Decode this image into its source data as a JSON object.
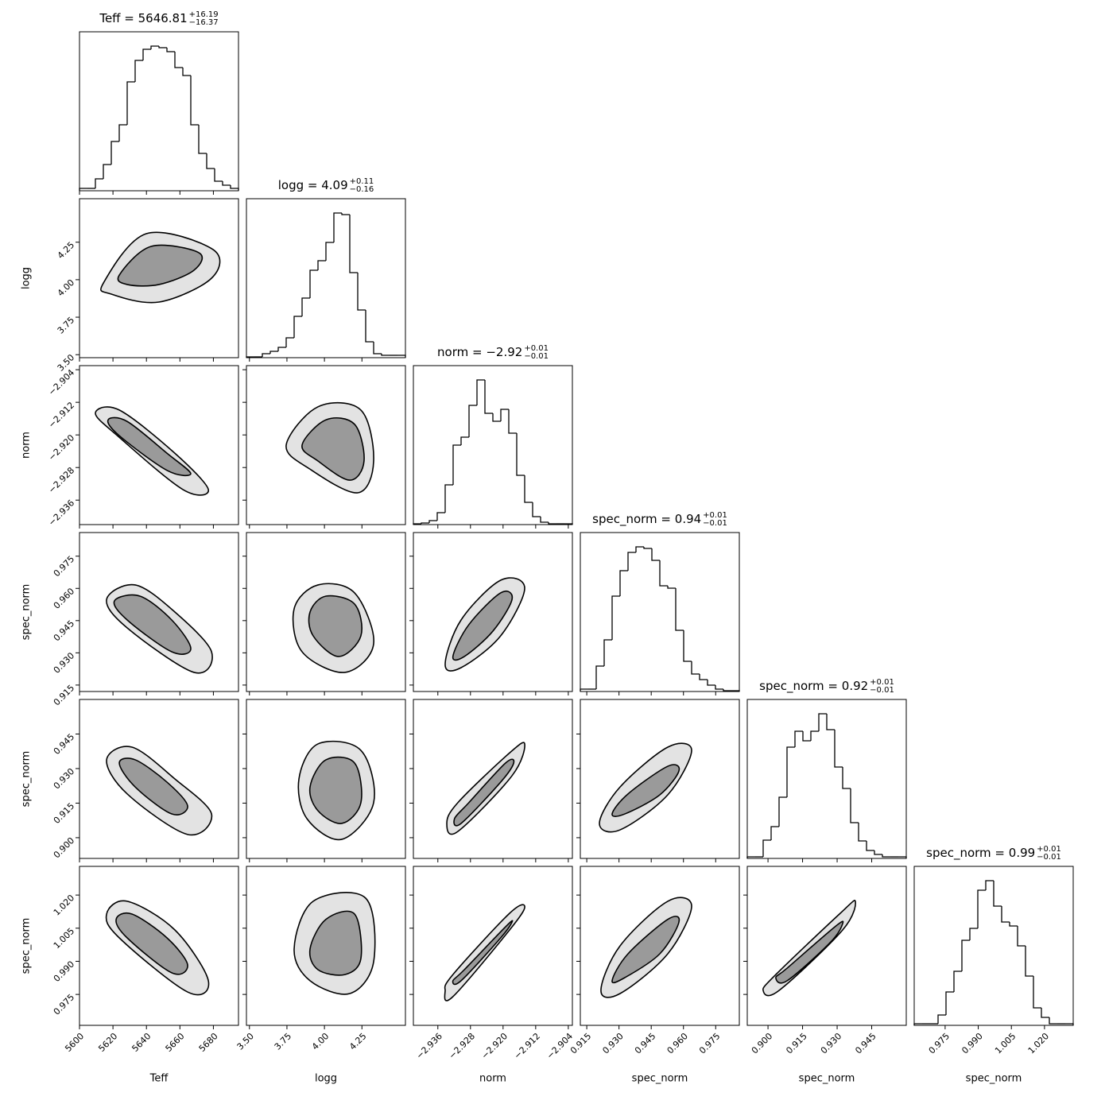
{
  "chart_data": {
    "type": "corner",
    "hist_ylim": [
      0,
      200
    ],
    "line_color": "#000000",
    "contour_fills": [
      "#e3e3e3",
      "#9a9a9a"
    ],
    "parameters": [
      {
        "label": "Teff",
        "title": "Teff = 5646.81",
        "title_upper": "+16.19",
        "title_lower": "−16.37",
        "lim": [
          5600,
          5695
        ],
        "ticks": [
          5600,
          5620,
          5640,
          5660,
          5680
        ],
        "bins": [
          5600,
          5604.75,
          5609.5,
          5614.25,
          5619,
          5623.75,
          5628.5,
          5633.25,
          5638,
          5642.75,
          5647.5,
          5652.25,
          5657,
          5661.75,
          5666.5,
          5671.25,
          5676,
          5680.75,
          5685.5,
          5690.25,
          5695
        ],
        "counts": [
          3,
          3,
          15,
          33,
          62,
          83,
          137,
          164,
          178,
          182,
          180,
          175,
          155,
          145,
          83,
          47,
          28,
          12,
          7,
          3
        ]
      },
      {
        "label": "logg",
        "title": "logg = 4.09",
        "title_upper": "+0.11",
        "title_lower": "−0.16",
        "lim": [
          3.48,
          4.54
        ],
        "ticks": [
          {
            "value": 3.5,
            "label": "3.50"
          },
          3.75,
          {
            "value": 4,
            "label": "4.00"
          },
          4.25
        ],
        "bins": [
          3.48,
          3.533,
          3.586,
          3.639,
          3.692,
          3.745,
          3.798,
          3.851,
          3.904,
          3.957,
          4.01,
          4.063,
          4.116,
          4.169,
          4.222,
          4.275,
          4.328,
          4.381,
          4.434,
          4.487,
          4.54
        ],
        "counts": [
          1,
          1,
          5,
          8,
          13,
          25,
          52,
          75,
          110,
          122,
          145,
          182,
          180,
          107,
          60,
          20,
          5,
          3,
          3,
          3
        ]
      },
      {
        "label": "norm",
        "title": "norm = −2.92",
        "title_upper": "+0.01",
        "title_lower": "−0.01",
        "lim": [
          -2.942,
          -2.903
        ],
        "ticks": [
          {
            "value": -2.936,
            "label": "−2.936"
          },
          {
            "value": -2.928,
            "label": "−2.928"
          },
          {
            "value": -2.92,
            "label": "−2.920"
          },
          {
            "value": -2.912,
            "label": "−2.912"
          },
          {
            "value": -2.904,
            "label": "−2.904"
          }
        ],
        "bins": [
          -2.942,
          -2.94005,
          -2.9381,
          -2.93615,
          -2.9342,
          -2.93225,
          -2.9303,
          -2.92835,
          -2.9264,
          -2.92445,
          -2.9225,
          -2.92055,
          -2.9186,
          -2.91665,
          -2.9147,
          -2.91275,
          -2.9108,
          -2.90885,
          -2.9069,
          -2.90495,
          -2.903
        ],
        "counts": [
          1,
          2,
          5,
          15,
          50,
          100,
          110,
          150,
          182,
          140,
          130,
          145,
          115,
          62,
          28,
          10,
          3,
          1,
          1,
          1
        ]
      },
      {
        "label": "spec_norm",
        "title": "spec_norm = 0.94",
        "title_upper": "+0.01",
        "title_lower": "−0.01",
        "lim": [
          0.912,
          0.986
        ],
        "ticks": [
          0.915,
          {
            "value": 0.93,
            "label": "0.930"
          },
          0.945,
          {
            "value": 0.96,
            "label": "0.960"
          },
          0.975
        ],
        "bins": [
          0.912,
          0.9157,
          0.9194,
          0.9231,
          0.9268,
          0.9305,
          0.9342,
          0.9379,
          0.9416,
          0.9453,
          0.949,
          0.9527,
          0.9564,
          0.9601,
          0.9638,
          0.9675,
          0.9712,
          0.9749,
          0.9786,
          0.9823,
          0.986
        ],
        "counts": [
          3,
          3,
          32,
          65,
          120,
          152,
          175,
          182,
          180,
          165,
          133,
          130,
          77,
          38,
          22,
          15,
          8,
          3,
          1,
          1
        ]
      },
      {
        "label": "spec_norm",
        "title": "spec_norm = 0.92",
        "title_upper": "+0.01",
        "title_lower": "−0.01",
        "lim": [
          0.891,
          0.96
        ],
        "ticks": [
          {
            "value": 0.9,
            "label": "0.900"
          },
          0.915,
          {
            "value": 0.93,
            "label": "0.930"
          },
          0.945
        ],
        "bins": [
          0.891,
          0.89445,
          0.8979,
          0.90135,
          0.9048,
          0.90825,
          0.9117,
          0.91515,
          0.9186,
          0.92205,
          0.9255,
          0.92895,
          0.9324,
          0.93585,
          0.9393,
          0.94275,
          0.9462,
          0.94965,
          0.9531,
          0.95655,
          0.96
        ],
        "counts": [
          2,
          2,
          23,
          40,
          77,
          140,
          160,
          148,
          160,
          182,
          162,
          115,
          88,
          45,
          22,
          10,
          5,
          2,
          2,
          2
        ]
      },
      {
        "label": "spec_norm",
        "title": "spec_norm = 0.99",
        "title_upper": "+0.01",
        "title_lower": "−0.01",
        "lim": [
          0.961,
          1.033
        ],
        "ticks": [
          0.975,
          {
            "value": 0.99,
            "label": "0.990"
          },
          1.005,
          {
            "value": 1.02,
            "label": "1.020"
          }
        ],
        "bins": [
          0.961,
          0.9646,
          0.9682,
          0.9718,
          0.9754,
          0.979,
          0.9826,
          0.9862,
          0.9898,
          0.9934,
          0.997,
          1.0006,
          1.0042,
          1.0078,
          1.0114,
          1.015,
          1.0186,
          1.0222,
          1.0258,
          1.0294,
          1.033
        ],
        "counts": [
          2,
          2,
          2,
          13,
          42,
          68,
          107,
          122,
          170,
          182,
          150,
          130,
          125,
          100,
          62,
          22,
          10,
          2,
          2,
          2
        ]
      }
    ],
    "pairs": [
      {
        "contours": [
          {
            "x": [
              5614.3,
              5639.9,
              5679.8,
              5678.9,
              5647.5,
              5619
            ],
            "y": [
              3.978,
              4.307,
              4.201,
              4.01,
              3.851,
              3.904
            ]
          },
          {
            "x": [
              5623.8,
              5642.8,
              5671.3,
              5668.4,
              5647.5,
              5628.5
            ],
            "y": [
              4.031,
              4.222,
              4.18,
              4.063,
              3.968,
              3.968
            ]
          }
        ]
      },
      {
        "contours": [
          {
            "x": [
              5609.5,
              5623.8,
              5657,
              5677,
              5661.8,
              5623.8
            ],
            "y": [
              -2.9147,
              -2.9139,
              -2.9245,
              -2.9334,
              -2.9334,
              -2.9206
            ]
          },
          {
            "x": [
              5617.1,
              5628.5,
              5652.3,
              5666.5,
              5652.3,
              5623.8
            ],
            "y": [
              -2.9163,
              -2.9167,
              -2.9245,
              -2.9295,
              -2.9287,
              -2.9202
            ]
          }
        ]
      },
      {
        "contours": [
          {
            "x": [
              3.745,
              3.957,
              4.243,
              4.328,
              4.222,
              3.904
            ],
            "y": [
              -2.9225,
              -2.9131,
              -2.9139,
              -2.9264,
              -2.9342,
              -2.9284
            ]
          },
          {
            "x": [
              3.851,
              4.01,
              4.201,
              4.264,
              4.169,
              3.957
            ],
            "y": [
              -2.9225,
              -2.9163,
              -2.9174,
              -2.9264,
              -2.9311,
              -2.9264
            ]
          }
        ]
      },
      {
        "contours": [
          {
            "x": [
              5616.2,
              5633.3,
              5657,
              5678.9,
              5668.4,
              5628.5
            ],
            "y": [
              0.9549,
              0.9616,
              0.949,
              0.9305,
              0.9209,
              0.9416
            ]
          },
          {
            "x": [
              5620.9,
              5636.1,
              5655.1,
              5666.5,
              5655.1,
              5628.5
            ],
            "y": [
              0.9542,
              0.9564,
              0.9453,
              0.932,
              0.9305,
              0.9453
            ]
          }
        ]
      },
      {
        "contours": [
          {
            "x": [
              3.798,
              3.957,
              4.201,
              4.328,
              4.137,
              3.851
            ],
            "y": [
              0.9505,
              0.9616,
              0.9579,
              0.9342,
              0.9209,
              0.9305
            ]
          },
          {
            "x": [
              3.904,
              4.01,
              4.201,
              4.243,
              4.095,
              3.925
            ],
            "y": [
              0.949,
              0.9564,
              0.9527,
              0.9379,
              0.9283,
              0.9379
            ]
          }
        ]
      },
      {
        "contours": [
          {
            "x": [
              -2.9342,
              -2.9303,
              -2.9206,
              -2.9147,
              -2.9206,
              -2.9303
            ],
            "y": [
              0.9246,
              0.9453,
              0.9638,
              0.9601,
              0.9379,
              0.9231
            ]
          },
          {
            "x": [
              -2.9323,
              -2.9284,
              -2.9206,
              -2.9178,
              -2.9225,
              -2.9295
            ],
            "y": [
              0.9283,
              0.9431,
              0.9579,
              0.9549,
              0.9401,
              0.9283
            ]
          }
        ]
      },
      {
        "contours": [
          {
            "x": [
              5616.2,
              5631.4,
              5657,
              5678.9,
              5664.6,
              5628.5
            ],
            "y": [
              0.9338,
              0.9393,
              0.9255,
              0.9103,
              0.9014,
              0.919
            ]
          },
          {
            "x": [
              5623.8,
              5633.3,
              5652.3,
              5664.6,
              5655.1,
              5633.3
            ],
            "y": [
              0.9324,
              0.9338,
              0.9241,
              0.9138,
              0.9103,
              0.922
            ]
          }
        ]
      },
      {
        "contours": [
          {
            "x": [
              3.83,
              3.957,
              4.243,
              4.328,
              4.116,
              3.883
            ],
            "y": [
              0.9255,
              0.9407,
              0.9379,
              0.9152,
              0.8993,
              0.9083
            ]
          },
          {
            "x": [
              3.904,
              4.01,
              4.201,
              4.243,
              4.116,
              3.957
            ],
            "y": [
              0.922,
              0.9338,
              0.9324,
              0.9152,
              0.9062,
              0.9117
            ]
          }
        ]
      },
      {
        "contours": [
          {
            "x": [
              -2.9338,
              -2.9311,
              -2.9186,
              -2.9147,
              -2.9178,
              -2.9311
            ],
            "y": [
              0.9062,
              0.9152,
              0.9365,
              0.9407,
              0.9269,
              0.9027
            ]
          },
          {
            "x": [
              -2.9319,
              -2.9284,
              -2.9194,
              -2.9174,
              -2.9206,
              -2.9303
            ],
            "y": [
              0.9083,
              0.9152,
              0.9324,
              0.9324,
              0.9241,
              0.9062
            ]
          }
        ]
      },
      {
        "contours": [
          {
            "x": [
              0.9209,
              0.9305,
              0.9527,
              0.9638,
              0.9527,
              0.9305
            ],
            "y": [
              0.9062,
              0.922,
              0.9393,
              0.9379,
              0.9186,
              0.9034
            ]
          },
          {
            "x": [
              0.9268,
              0.9342,
              0.9527,
              0.9579,
              0.949,
              0.9327
            ],
            "y": [
              0.9103,
              0.919,
              0.931,
              0.929,
              0.9186,
              0.9103
            ]
          }
        ]
      },
      {
        "contours": [
          {
            "x": [
              5616.2,
              5628.5,
              5657,
              5677,
              5664.6,
              5623.8
            ],
            "y": [
              1.0114,
              1.0172,
              1.0042,
              0.9812,
              0.9761,
              1.0006
            ]
          },
          {
            "x": [
              5621.9,
              5631.4,
              5652.3,
              5664.6,
              5655.1,
              5628.5
            ],
            "y": [
              1.009,
              1.0114,
              1.0006,
              0.9884,
              0.9848,
              1.0006
            ]
          }
        ]
      },
      {
        "contours": [
          {
            "x": [
              3.798,
              3.925,
              4.275,
              4.328,
              4.169,
              3.904
            ],
            "y": [
              0.9956,
              1.0172,
              1.0186,
              0.9898,
              0.9754,
              0.9812
            ]
          },
          {
            "x": [
              3.904,
              4.01,
              4.201,
              4.243,
              4.137,
              3.957
            ],
            "y": [
              0.9956,
              1.009,
              1.0114,
              0.9912,
              0.984,
              0.9862
            ]
          }
        ]
      },
      {
        "contours": [
          {
            "x": [
              -2.9342,
              -2.9323,
              -2.9186,
              -2.9147,
              -2.9178,
              -2.9323
            ],
            "y": [
              0.9768,
              0.984,
              1.0114,
              1.015,
              1.0056,
              0.974
            ]
          },
          {
            "x": [
              -2.9323,
              -2.9295,
              -2.9194,
              -2.9178,
              -2.9206,
              -2.9303
            ],
            "y": [
              0.9812,
              0.9862,
              1.0056,
              1.0078,
              1.0006,
              0.9812
            ]
          }
        ]
      },
      {
        "contours": [
          {
            "x": [
              0.9216,
              0.9305,
              0.9527,
              0.9638,
              0.9527,
              0.9305
            ],
            "y": [
              0.9768,
              0.997,
              1.0172,
              1.015,
              0.9934,
              0.9754
            ]
          },
          {
            "x": [
              0.9268,
              0.9342,
              0.9527,
              0.9579,
              0.949,
              0.9327
            ],
            "y": [
              0.9812,
              0.9934,
              1.009,
              1.0078,
              0.9934,
              0.9826
            ]
          }
        ]
      },
      {
        "contours": [
          {
            "x": [
              0.8979,
              0.9034,
              0.931,
              0.9379,
              0.9324,
              0.9048
            ],
            "y": [
              0.9768,
              0.984,
              1.0114,
              1.0172,
              1.0042,
              0.9768
            ]
          },
          {
            "x": [
              0.9034,
              0.9083,
              0.929,
              0.9324,
              0.9269,
              0.9083
            ],
            "y": [
              0.9826,
              0.9869,
              1.0056,
              1.0071,
              0.9984,
              0.9812
            ]
          }
        ]
      }
    ]
  }
}
